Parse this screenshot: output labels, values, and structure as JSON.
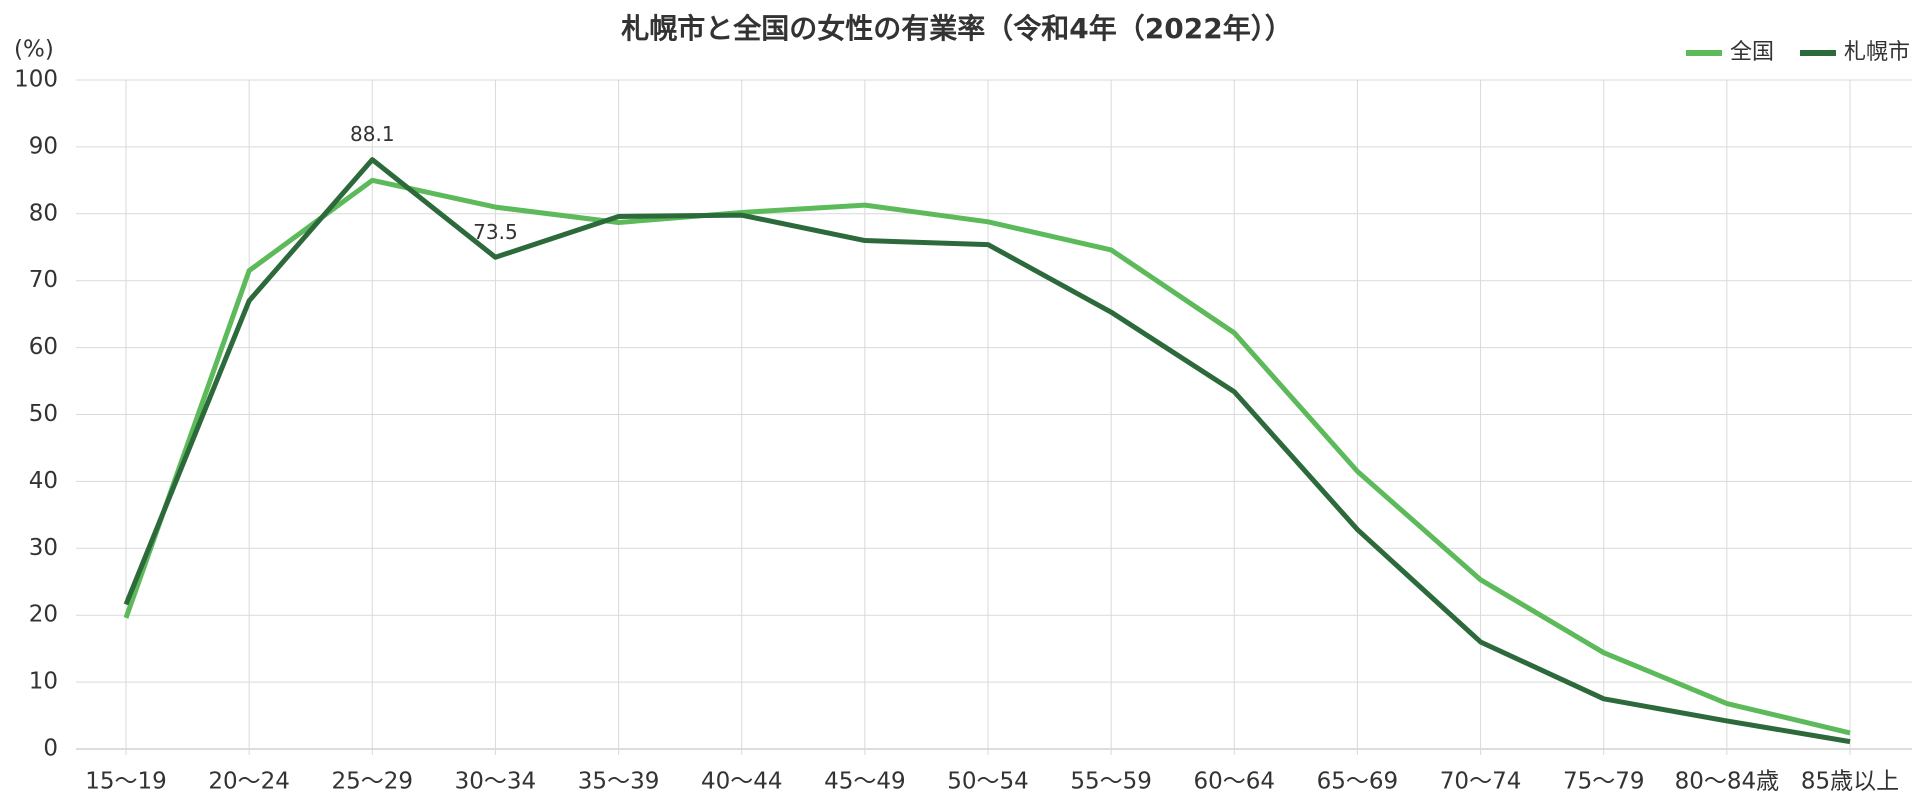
{
  "chart_data": {
    "type": "line",
    "title": "札幌市と全国の女性の有業率（令和4年（2022年））",
    "y_unit_label": "(%)",
    "categories": [
      "15～19",
      "20～24",
      "25～29",
      "30～34",
      "35～39",
      "40～44",
      "45～49",
      "50～54",
      "55～59",
      "60～64",
      "65～69",
      "70～74",
      "75～79",
      "80～84歳",
      "85歳以上"
    ],
    "series": [
      {
        "name": "全国",
        "color": "#5cba5a",
        "values": [
          19.6,
          71.5,
          85.0,
          81.0,
          78.7,
          80.2,
          81.3,
          78.8,
          74.6,
          62.2,
          41.5,
          25.3,
          14.4,
          6.8,
          2.4
        ]
      },
      {
        "name": "札幌市",
        "color": "#2d6a3b",
        "values": [
          21.6,
          67.0,
          88.1,
          73.5,
          79.6,
          79.8,
          76.0,
          75.4,
          65.3,
          53.4,
          32.8,
          16.0,
          7.5,
          4.2,
          1.1
        ],
        "data_labels": [
          2,
          3
        ]
      }
    ],
    "ylim": [
      0,
      100
    ],
    "yticks": [
      0,
      10,
      20,
      30,
      40,
      50,
      60,
      70,
      80,
      90,
      100
    ],
    "grid": true,
    "legend": "top-right"
  }
}
